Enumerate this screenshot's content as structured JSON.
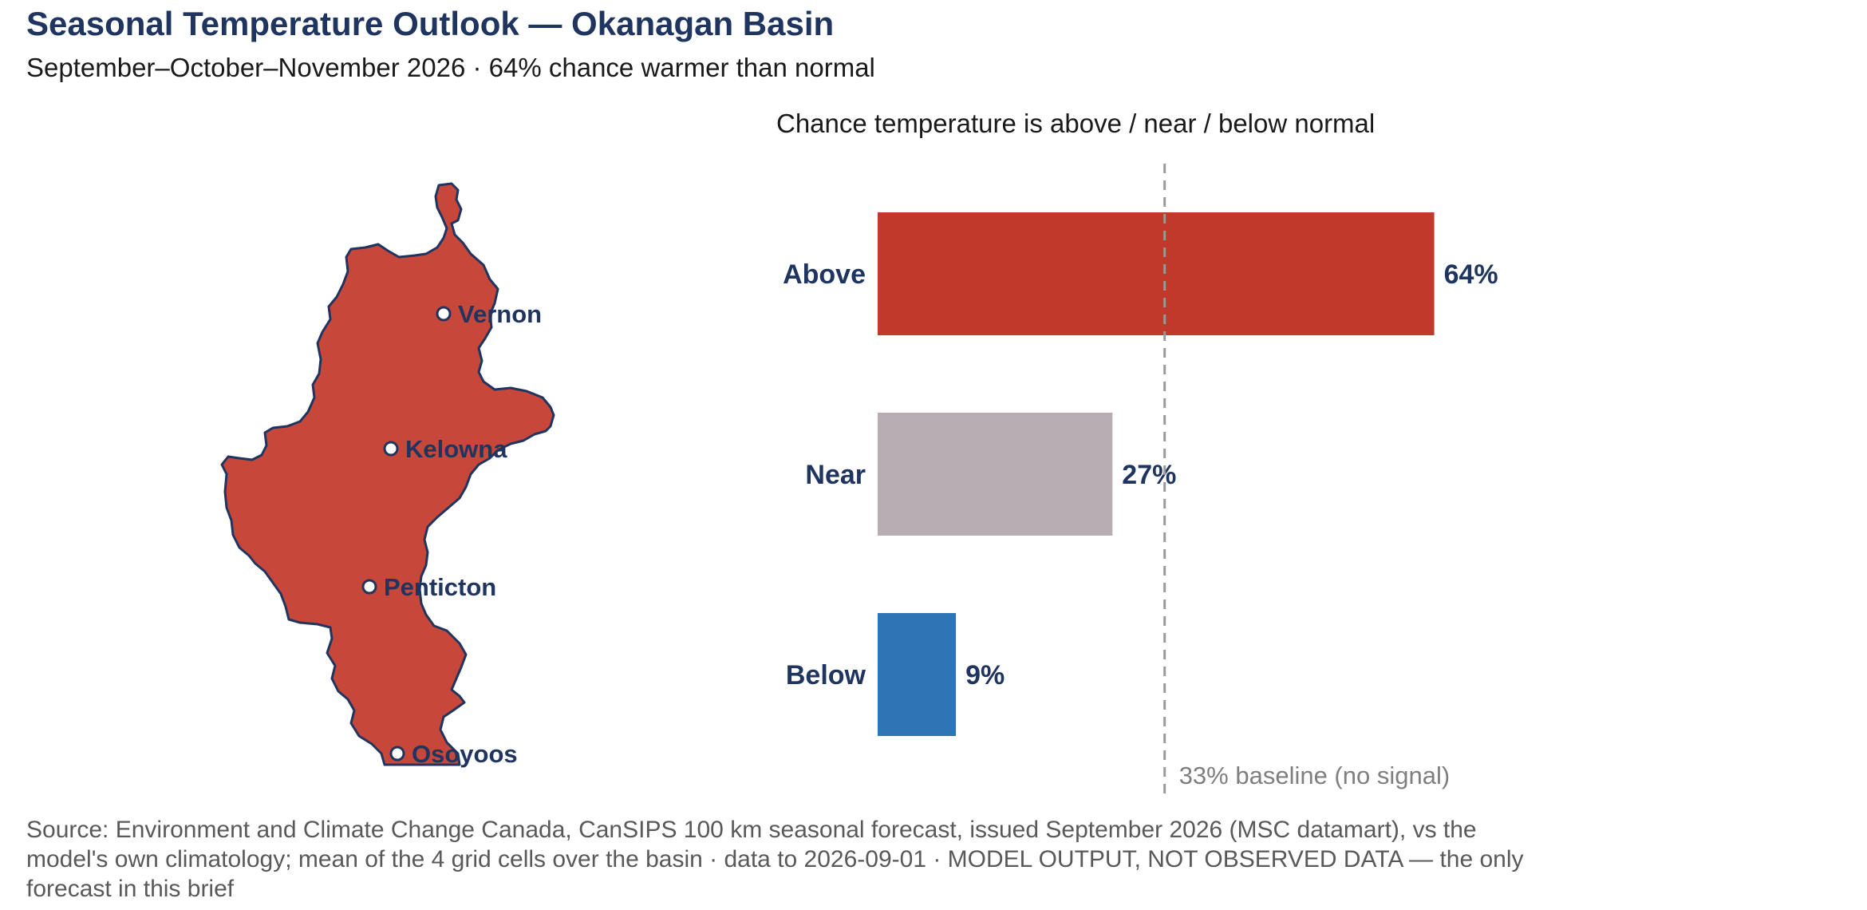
{
  "header": {
    "title": "Seasonal Temperature Outlook — Okanagan Basin",
    "subtitle": "September–October–November 2026 · 64% chance warmer than normal"
  },
  "map": {
    "fill_color": "#c8473b",
    "outline_color": "#1f3560",
    "cities": [
      {
        "name": "Vernon"
      },
      {
        "name": "Kelowna"
      },
      {
        "name": "Penticton"
      },
      {
        "name": "Osoyoos"
      }
    ]
  },
  "chart_data": {
    "type": "bar",
    "orientation": "horizontal",
    "title": "Chance temperature is above / near / below normal",
    "categories": [
      "Above",
      "Near",
      "Below"
    ],
    "values": [
      64,
      27,
      9
    ],
    "value_labels": [
      "64%",
      "27%",
      "9%"
    ],
    "colors": [
      "#c0392b",
      "#b8adb2",
      "#2e75b6"
    ],
    "xlim": [
      0,
      100
    ],
    "reference_line": {
      "value": 33,
      "label": "33% baseline (no signal)",
      "style": "dashed"
    },
    "grid": false
  },
  "footer": {
    "source": "Source: Environment and Climate Change Canada, CanSIPS 100 km seasonal forecast, issued September 2026 (MSC datamart), vs the model's own climatology; mean of the 4 grid cells over the basin · data to 2026-09-01 · MODEL OUTPUT, NOT OBSERVED DATA — the only forecast in this brief"
  }
}
